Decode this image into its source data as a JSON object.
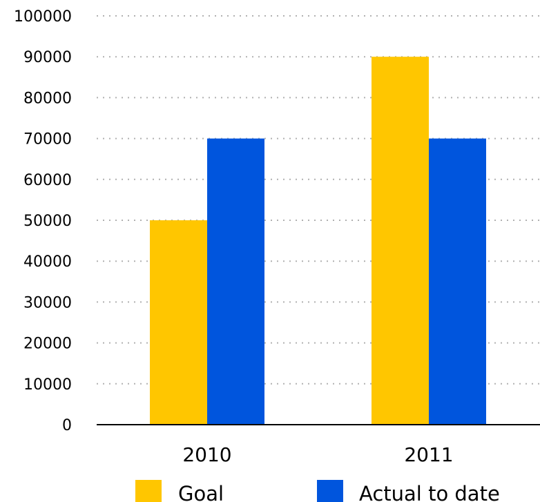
{
  "chart_data": {
    "type": "bar",
    "categories": [
      "2010",
      "2011"
    ],
    "series": [
      {
        "name": "Goal",
        "values": [
          50000,
          90000
        ],
        "color": "#FFC600"
      },
      {
        "name": "Actual to date",
        "values": [
          70000,
          70000
        ],
        "color": "#0055DD"
      }
    ],
    "title": "",
    "xlabel": "",
    "ylabel": "",
    "ylim": [
      0,
      100000
    ],
    "yticks": [
      "0",
      "10000",
      "20000",
      "30000",
      "40000",
      "50000",
      "60000",
      "70000",
      "80000",
      "90000",
      "100000"
    ],
    "grid": true,
    "legend": "bottom"
  }
}
